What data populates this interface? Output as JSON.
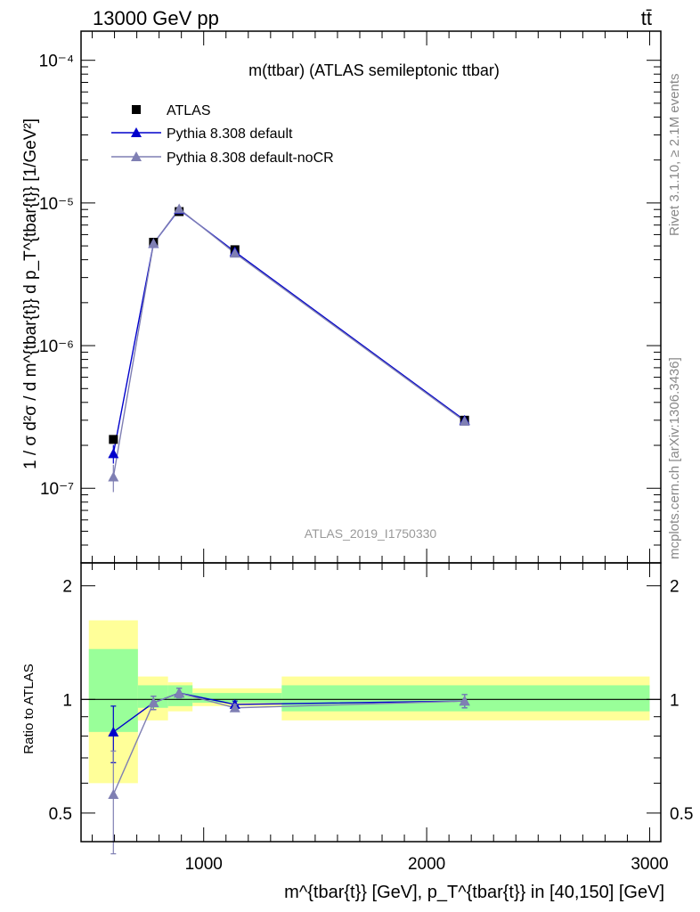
{
  "header": {
    "left_title": "13000 GeV pp",
    "right_title": "tt̄"
  },
  "side_labels": {
    "rivet": "Rivet 3.1.10, ≥ 2.1M events",
    "mcplots": "mcplots.cern.ch [arXiv:1306.3436]"
  },
  "main_plot": {
    "title": "m(ttbar) (ATLAS semileptonic ttbar)",
    "analysis_tag": "ATLAS_2019_I1750330",
    "ylabel": "1 / σ d²σ / d m^{tbar{t}} d p_T^{tbar{t}} [1/GeV²]",
    "ytick_labels": [
      "10⁻⁴",
      "10⁻⁵",
      "10⁻⁶",
      "10⁻⁷"
    ],
    "legend": [
      {
        "label": "ATLAS",
        "color": "#000000",
        "marker": "square"
      },
      {
        "label": "Pythia 8.308 default",
        "color": "#0000cc",
        "marker": "triangle"
      },
      {
        "label": "Pythia 8.308 default-noCR",
        "color": "#7f7fb3",
        "marker": "triangle"
      }
    ]
  },
  "ratio_plot": {
    "ylabel": "Ratio to ATLAS",
    "ytick_labels": [
      "2",
      "1",
      "0.5"
    ]
  },
  "x_axis": {
    "label": "m^{tbar{t}} [GeV], p_T^{tbar{t}} in [40,150] [GeV]",
    "tick_labels": [
      "1000",
      "2000",
      "3000"
    ]
  },
  "chart_data": [
    {
      "type": "line",
      "title": "m(ttbar) (ATLAS semileptonic ttbar)",
      "xlabel": "m^{tbar{t}} [GeV], p_T^{tbar{t}} in [40,150] [GeV]",
      "ylabel": "1 / σ d²σ / d m^{tbar{t}} d p_T^{tbar{t}} [1/GeV²]",
      "xlim": [
        450,
        3050
      ],
      "ylim": [
        3e-08,
        0.00016
      ],
      "yscale": "log",
      "legend_position": "top-left",
      "series": [
        {
          "name": "ATLAS",
          "color": "#000000",
          "marker": "square",
          "x": [
            595,
            775,
            890,
            1140,
            2170
          ],
          "y": [
            2.2e-07,
            5.3e-06,
            8.7e-06,
            4.7e-06,
            3e-07
          ]
        },
        {
          "name": "Pythia 8.308 default",
          "color": "#0000cc",
          "marker": "triangle",
          "x": [
            595,
            775,
            890,
            1140,
            2170
          ],
          "y": [
            1.75e-07,
            5.2e-06,
            9e-06,
            4.55e-06,
            3e-07
          ],
          "yerr": [
            2.6e-08,
            3e-07,
            3e-07,
            2e-07,
            1.5e-08
          ]
        },
        {
          "name": "Pythia 8.308 default-noCR",
          "color": "#7f7fb3",
          "marker": "triangle",
          "x": [
            595,
            775,
            890,
            1140,
            2170
          ],
          "y": [
            1.2e-07,
            5.2e-06,
            9.1e-06,
            4.45e-06,
            2.95e-07
          ],
          "yerr": [
            2.6e-08,
            3e-07,
            3e-07,
            2e-07,
            1.5e-08
          ]
        }
      ]
    },
    {
      "type": "line",
      "ylabel": "Ratio to ATLAS",
      "xlim": [
        450,
        3050
      ],
      "ylim": [
        0.42,
        2.3
      ],
      "yscale": "log",
      "bin_edges": [
        485,
        705,
        840,
        950,
        1350,
        3000
      ],
      "uncertainty_bands": [
        {
          "name": "yellow",
          "color": "#ffff99",
          "lo": [
            0.6,
            0.88,
            0.93,
            0.96,
            0.88
          ],
          "hi": [
            1.62,
            1.15,
            1.11,
            1.07,
            1.15
          ]
        },
        {
          "name": "green",
          "color": "#99ff99",
          "lo": [
            0.82,
            0.95,
            0.96,
            0.98,
            0.93
          ],
          "hi": [
            1.36,
            1.09,
            1.09,
            1.04,
            1.09
          ]
        }
      ],
      "series": [
        {
          "name": "Pythia 8.308 default",
          "color": "#0000cc",
          "x": [
            595,
            775,
            890,
            1140,
            2170
          ],
          "y": [
            0.82,
            0.98,
            1.04,
            0.97,
            0.99
          ],
          "yerr": [
            0.14,
            0.04,
            0.03,
            0.02,
            0.04
          ]
        },
        {
          "name": "Pythia 8.308 default-noCR",
          "color": "#7f7fb3",
          "x": [
            595,
            775,
            890,
            1140,
            2170
          ],
          "y": [
            0.56,
            0.98,
            1.04,
            0.95,
            0.99
          ],
          "yerr": [
            0.17,
            0.04,
            0.03,
            0.02,
            0.04
          ]
        }
      ]
    }
  ]
}
